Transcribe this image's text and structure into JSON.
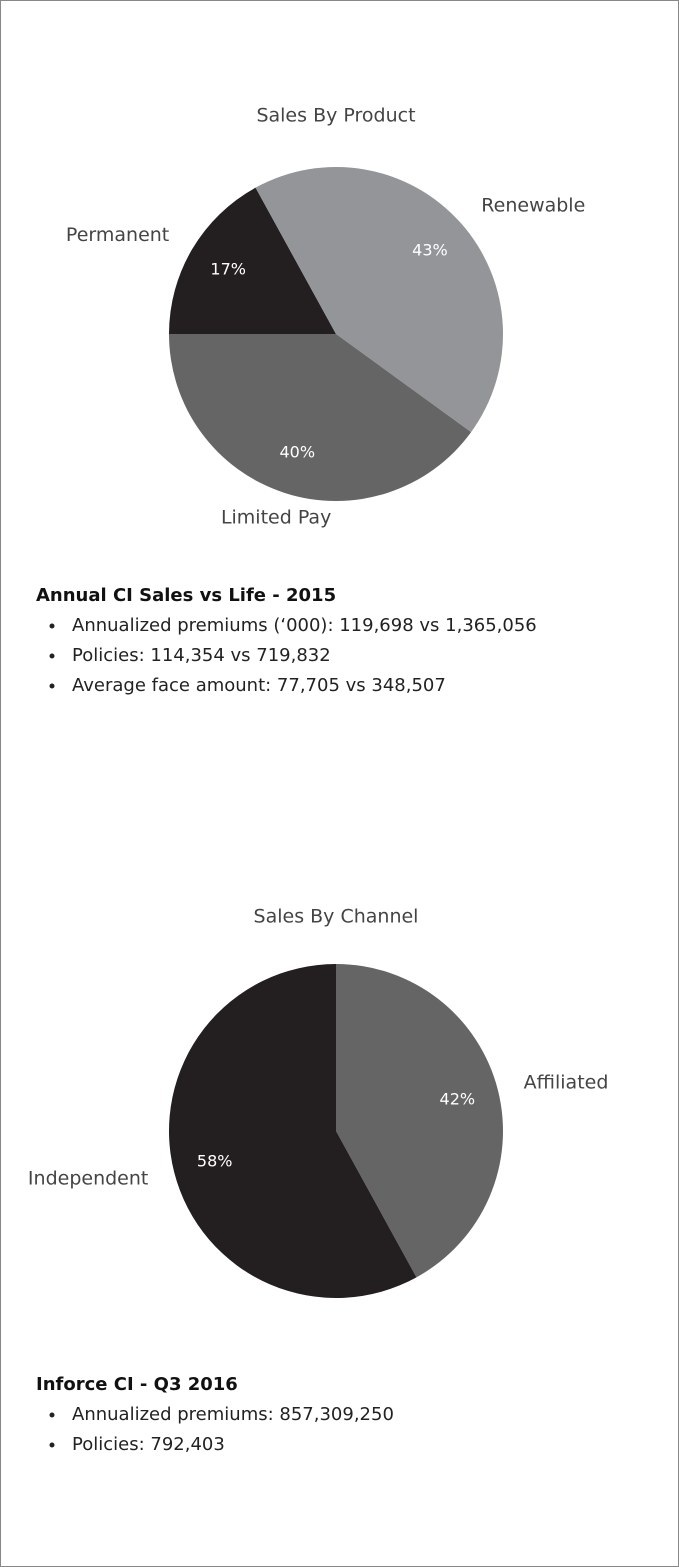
{
  "chart_data": [
    {
      "type": "pie",
      "title": "Sales By Product",
      "categories": [
        "Permanent",
        "Renewable",
        "Limited Pay"
      ],
      "values": [
        17,
        43,
        40
      ],
      "value_labels": [
        "17%",
        "43%",
        "40%"
      ],
      "colors": [
        "#231f20",
        "#939598",
        "#656565"
      ],
      "start_angle": 270,
      "direction": "clockwise"
    },
    {
      "type": "pie",
      "title": "Sales By Channel",
      "categories": [
        "Affiliated",
        "Independent"
      ],
      "values": [
        42,
        58
      ],
      "value_labels": [
        "42%",
        "58%"
      ],
      "colors": [
        "#656565",
        "#231f20"
      ],
      "start_angle": 0,
      "direction": "clockwise"
    }
  ],
  "sections": [
    {
      "heading": "Annual CI Sales vs Life - 2015",
      "bullets": [
        "Annualized premiums (‘000):  119,698 vs 1,365,056",
        "Policies:  114,354 vs 719,832",
        "Average face amount:  77,705 vs 348,507"
      ]
    },
    {
      "heading": "Inforce CI - Q3 2016",
      "bullets": [
        "Annualized premiums:  857,309,250",
        "Policies:  792,403"
      ]
    }
  ]
}
